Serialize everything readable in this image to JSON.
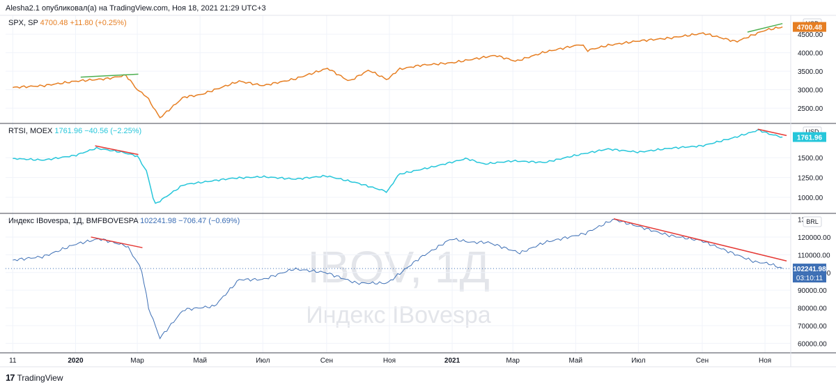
{
  "header": {
    "text": "Alesha2.1 опубликовал(а) на TradingView.com, Ноя 18, 2021 21:29 UTC+3"
  },
  "footer": {
    "brand": "TradingView",
    "logo": "17"
  },
  "colors": {
    "spx": "#e67e22",
    "rtsi": "#26c6da",
    "ibov": "#3d6fb5",
    "green": "#4caf50",
    "red": "#e53935",
    "grid": "#f0f3fa",
    "divider": "#434651"
  },
  "watermark": {
    "title": "IBOV, 1Д",
    "subtitle": "Индекс IBovespa"
  },
  "chart_data": [
    {
      "type": "line",
      "symbol": "SPX, SP",
      "last": "4700.48",
      "change": "+11.80 (+0.25%)",
      "currency": "USD",
      "price_label": "4700.48",
      "yticks": [
        "2500.00",
        "3000.00",
        "3500.00",
        "4000.00",
        "4500.00",
        "50"
      ],
      "ylim": [
        2200,
        4900
      ],
      "series": [
        {
          "x": [
            "2019-11-01",
            "2019-12-01",
            "2020-01-01",
            "2020-02-01",
            "2020-02-19",
            "2020-03-01",
            "2020-03-10",
            "2020-03-23",
            "2020-04-15",
            "2020-05-01",
            "2020-06-08",
            "2020-07-01",
            "2020-08-01",
            "2020-09-02",
            "2020-09-23",
            "2020-10-12",
            "2020-10-30",
            "2020-11-10",
            "2020-12-01",
            "2021-01-01",
            "2021-02-12",
            "2021-03-04",
            "2021-04-01",
            "2021-05-07",
            "2021-05-12",
            "2021-06-01",
            "2021-07-01",
            "2021-08-01",
            "2021-09-02",
            "2021-10-04",
            "2021-11-01",
            "2021-11-18"
          ],
          "values": [
            3060,
            3110,
            3230,
            3300,
            3390,
            3000,
            2820,
            2240,
            2800,
            2860,
            3230,
            3110,
            3290,
            3580,
            3230,
            3530,
            3270,
            3550,
            3660,
            3730,
            3930,
            3770,
            4020,
            4230,
            4060,
            4200,
            4320,
            4400,
            4530,
            4300,
            4610,
            4700
          ]
        }
      ],
      "annotations": [
        {
          "color": "green",
          "x": [
            "2020-01-06",
            "2020-03-02"
          ],
          "values": [
            3340,
            3420
          ]
        },
        {
          "color": "green",
          "x": [
            "2021-10-15",
            "2021-11-18"
          ],
          "values": [
            4560,
            4790
          ]
        }
      ]
    },
    {
      "type": "line",
      "symbol": "RTSI, MOEX",
      "last": "1761.96",
      "change": "−40.56 (−2.25%)",
      "currency": "USD",
      "price_label": "1761.96",
      "yticks": [
        "1000.00",
        "1250.00",
        "1500.00"
      ],
      "ylim": [
        850,
        1880
      ],
      "series": [
        {
          "x": [
            "2019-11-01",
            "2019-12-01",
            "2020-01-01",
            "2020-01-21",
            "2020-02-15",
            "2020-03-01",
            "2020-03-10",
            "2020-03-18",
            "2020-04-15",
            "2020-06-01",
            "2020-07-01",
            "2020-08-01",
            "2020-09-01",
            "2020-10-01",
            "2020-10-30",
            "2020-11-10",
            "2020-12-15",
            "2021-01-15",
            "2021-02-01",
            "2021-03-01",
            "2021-04-01",
            "2021-05-01",
            "2021-06-01",
            "2021-07-01",
            "2021-08-01",
            "2021-09-01",
            "2021-10-01",
            "2021-10-26",
            "2021-11-05",
            "2021-11-18"
          ],
          "values": [
            1490,
            1470,
            1530,
            1620,
            1570,
            1520,
            1330,
            910,
            1160,
            1240,
            1260,
            1230,
            1270,
            1180,
            1070,
            1290,
            1390,
            1490,
            1420,
            1460,
            1440,
            1530,
            1610,
            1570,
            1620,
            1650,
            1750,
            1850,
            1800,
            1761
          ]
        }
      ],
      "annotations": [
        {
          "color": "red",
          "x": [
            "2020-01-20",
            "2020-03-02"
          ],
          "values": [
            1650,
            1540
          ]
        },
        {
          "color": "red",
          "x": [
            "2021-10-25",
            "2021-11-22"
          ],
          "values": [
            1860,
            1780
          ]
        }
      ]
    },
    {
      "type": "line",
      "symbol": "Индекс IBovespa, 1Д, BMFBOVESPA",
      "last": "102241.98",
      "change": "−706.47 (−0.69%)",
      "currency": "BRL",
      "price_label": "102241.98",
      "time_label": "03:10:11",
      "yticks": [
        "60000.00",
        "70000.00",
        "80000.00",
        "90000.00",
        "100000.00",
        "110000.00",
        "120000.00",
        "13"
      ],
      "ylim": [
        57000,
        131000
      ],
      "series": [
        {
          "x": [
            "2019-11-01",
            "2019-12-01",
            "2020-01-01",
            "2020-01-24",
            "2020-02-20",
            "2020-03-05",
            "2020-03-12",
            "2020-03-23",
            "2020-04-15",
            "2020-05-15",
            "2020-06-08",
            "2020-07-01",
            "2020-07-31",
            "2020-08-31",
            "2020-09-30",
            "2020-10-30",
            "2020-11-30",
            "2020-12-31",
            "2021-01-20",
            "2021-02-05",
            "2021-03-08",
            "2021-04-01",
            "2021-05-10",
            "2021-06-07",
            "2021-07-01",
            "2021-07-30",
            "2021-08-31",
            "2021-09-30",
            "2021-10-22",
            "2021-11-05",
            "2021-11-18"
          ],
          "values": [
            107000,
            109000,
            116000,
            119000,
            115000,
            102000,
            80000,
            63000,
            79000,
            81000,
            96000,
            96000,
            102000,
            100000,
            94000,
            94000,
            108000,
            119000,
            117000,
            117000,
            111000,
            117000,
            122000,
            130000,
            126000,
            121000,
            118000,
            111000,
            106000,
            105000,
            102241
          ]
        }
      ],
      "annotations": [
        {
          "color": "red",
          "x": [
            "2020-01-16",
            "2020-03-06"
          ],
          "values": [
            120000,
            114000
          ]
        },
        {
          "color": "red",
          "x": [
            "2021-06-07",
            "2021-11-22"
          ],
          "values": [
            130300,
            106500
          ]
        }
      ]
    }
  ],
  "xaxis": {
    "ticks": [
      {
        "label": "11",
        "x": "2019-11-01",
        "bold": false
      },
      {
        "label": "2020",
        "x": "2020-01-01",
        "bold": true
      },
      {
        "label": "Мар",
        "x": "2020-03-01",
        "bold": false
      },
      {
        "label": "Май",
        "x": "2020-05-01",
        "bold": false
      },
      {
        "label": "Июл",
        "x": "2020-07-01",
        "bold": false
      },
      {
        "label": "Сен",
        "x": "2020-09-01",
        "bold": false
      },
      {
        "label": "Ноя",
        "x": "2020-11-01",
        "bold": false
      },
      {
        "label": "2021",
        "x": "2021-01-01",
        "bold": true
      },
      {
        "label": "Мар",
        "x": "2021-03-01",
        "bold": false
      },
      {
        "label": "Май",
        "x": "2021-05-01",
        "bold": false
      },
      {
        "label": "Июл",
        "x": "2021-07-01",
        "bold": false
      },
      {
        "label": "Сен",
        "x": "2021-09-01",
        "bold": false
      },
      {
        "label": "Ноя",
        "x": "2021-11-01",
        "bold": false
      }
    ]
  }
}
